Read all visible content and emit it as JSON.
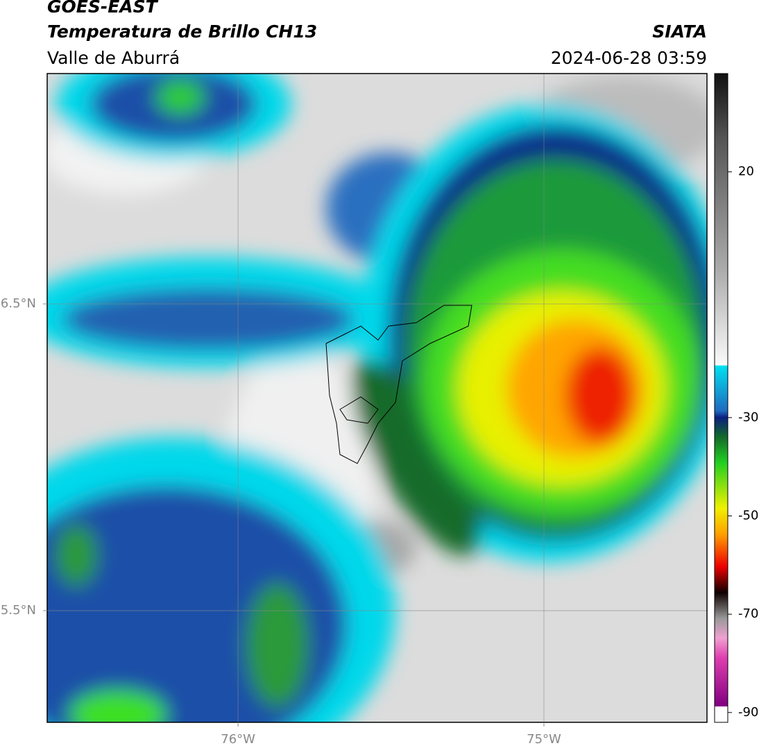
{
  "header": {
    "title": "GOES-EAST",
    "subtitle": "Temperatura de Brillo CH13",
    "region": "Valle de Aburrá",
    "source": "SIATA",
    "timestamp": "2024-06-28 03:59"
  },
  "map": {
    "xlim": [
      -76.624,
      -74.467
    ],
    "ylim": [
      5.136,
      7.251
    ],
    "xticks": [
      {
        "value": -76,
        "label": "76°W"
      },
      {
        "value": -75,
        "label": "75°W"
      }
    ],
    "yticks": [
      {
        "value": 6.5,
        "label": "6.5°N"
      },
      {
        "value": 5.5,
        "label": "5.5°N"
      }
    ],
    "grid": true
  },
  "colorbar": {
    "lim": [
      -92,
      40
    ],
    "ticks": [
      20,
      -30,
      -50,
      -70,
      -90
    ]
  }
}
